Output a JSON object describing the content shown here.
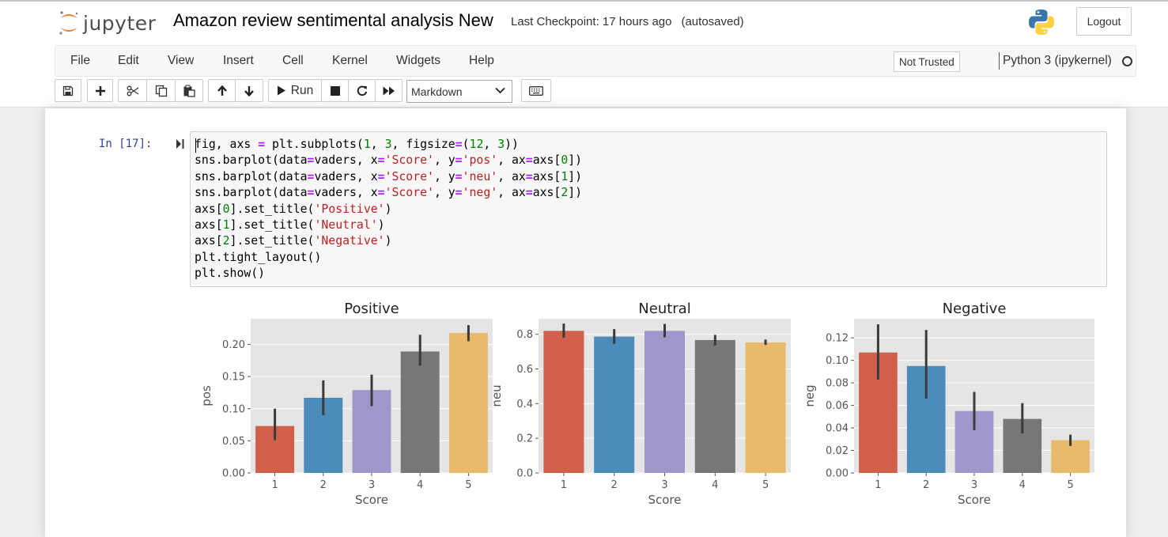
{
  "header": {
    "logo_text": "jupyter",
    "notebook_name": "Amazon review sentimental analysis New",
    "checkpoint": "Last Checkpoint: 17 hours ago",
    "autosave": "(autosaved)",
    "logout_label": "Logout"
  },
  "menu": {
    "items": [
      "File",
      "Edit",
      "View",
      "Insert",
      "Cell",
      "Kernel",
      "Widgets",
      "Help"
    ],
    "trust_label": "Not Trusted",
    "kernel_name": "Python 3 (ipykernel)"
  },
  "toolbar": {
    "run_label": "Run",
    "cell_type": "Markdown",
    "icons": [
      "save-icon",
      "plus-icon",
      "cut-icon",
      "copy-icon",
      "paste-icon",
      "arrow-up-icon",
      "arrow-down-icon",
      "play-icon",
      "stop-icon",
      "restart-icon",
      "fast-forward-icon",
      "keyboard-icon"
    ]
  },
  "cell": {
    "prompt": "In [17]:",
    "code_lines": [
      [
        [
          "fig, axs ",
          ""
        ],
        [
          "=",
          "o"
        ],
        [
          " plt.subplots(",
          ""
        ],
        [
          "1",
          "n"
        ],
        [
          ", ",
          ""
        ],
        [
          "3",
          "n"
        ],
        [
          ", figsize",
          ""
        ],
        [
          "=",
          "o"
        ],
        [
          "(",
          ""
        ],
        [
          "12",
          "n"
        ],
        [
          ", ",
          ""
        ],
        [
          "3",
          "n"
        ],
        [
          "))",
          ""
        ]
      ],
      [
        [
          "sns.barplot(data",
          ""
        ],
        [
          "=",
          "o"
        ],
        [
          "vaders, x",
          ""
        ],
        [
          "=",
          "o"
        ],
        [
          "'Score'",
          "s"
        ],
        [
          ", y",
          ""
        ],
        [
          "=",
          "o"
        ],
        [
          "'pos'",
          "s"
        ],
        [
          ", ax",
          ""
        ],
        [
          "=",
          "o"
        ],
        [
          "axs[",
          ""
        ],
        [
          "0",
          "n"
        ],
        [
          "])",
          ""
        ]
      ],
      [
        [
          "sns.barplot(data",
          ""
        ],
        [
          "=",
          "o"
        ],
        [
          "vaders, x",
          ""
        ],
        [
          "=",
          "o"
        ],
        [
          "'Score'",
          "s"
        ],
        [
          ", y",
          ""
        ],
        [
          "=",
          "o"
        ],
        [
          "'neu'",
          "s"
        ],
        [
          ", ax",
          ""
        ],
        [
          "=",
          "o"
        ],
        [
          "axs[",
          ""
        ],
        [
          "1",
          "n"
        ],
        [
          "])",
          ""
        ]
      ],
      [
        [
          "sns.barplot(data",
          ""
        ],
        [
          "=",
          "o"
        ],
        [
          "vaders, x",
          ""
        ],
        [
          "=",
          "o"
        ],
        [
          "'Score'",
          "s"
        ],
        [
          ", y",
          ""
        ],
        [
          "=",
          "o"
        ],
        [
          "'neg'",
          "s"
        ],
        [
          ", ax",
          ""
        ],
        [
          "=",
          "o"
        ],
        [
          "axs[",
          ""
        ],
        [
          "2",
          "n"
        ],
        [
          "])",
          ""
        ]
      ],
      [
        [
          "axs[",
          ""
        ],
        [
          "0",
          "n"
        ],
        [
          "].set_title(",
          ""
        ],
        [
          "'Positive'",
          "s"
        ],
        [
          ")",
          ""
        ]
      ],
      [
        [
          "axs[",
          ""
        ],
        [
          "1",
          "n"
        ],
        [
          "].set_title(",
          ""
        ],
        [
          "'Neutral'",
          "s"
        ],
        [
          ")",
          ""
        ]
      ],
      [
        [
          "axs[",
          ""
        ],
        [
          "2",
          "n"
        ],
        [
          "].set_title(",
          ""
        ],
        [
          "'Negative'",
          "s"
        ],
        [
          ")",
          ""
        ]
      ],
      [
        [
          "plt.tight_layout()",
          ""
        ]
      ],
      [
        [
          "plt.show()",
          ""
        ]
      ]
    ]
  },
  "colors": {
    "bars": [
      "#d0604b",
      "#4b8cba",
      "#9e98ca",
      "#777777",
      "#e8ba6a"
    ],
    "plot_bg": "#e5e5e5",
    "error_bar": "#3a3a3a"
  },
  "chart_data": [
    {
      "type": "bar",
      "title": "Positive",
      "xlabel": "Score",
      "ylabel": "pos",
      "categories": [
        "1",
        "2",
        "3",
        "4",
        "5"
      ],
      "values": [
        0.073,
        0.117,
        0.129,
        0.189,
        0.218
      ],
      "error_low": [
        0.051,
        0.09,
        0.104,
        0.167,
        0.205
      ],
      "error_high": [
        0.1,
        0.144,
        0.153,
        0.215,
        0.23
      ],
      "ylim": [
        0,
        0.24
      ],
      "yticks": [
        "0.00",
        "0.05",
        "0.10",
        "0.15",
        "0.20"
      ],
      "grid": true
    },
    {
      "type": "bar",
      "title": "Neutral",
      "xlabel": "Score",
      "ylabel": "neu",
      "categories": [
        "1",
        "2",
        "3",
        "4",
        "5"
      ],
      "values": [
        0.82,
        0.787,
        0.82,
        0.767,
        0.753
      ],
      "error_low": [
        0.78,
        0.745,
        0.783,
        0.736,
        0.739
      ],
      "error_high": [
        0.862,
        0.83,
        0.86,
        0.797,
        0.77
      ],
      "ylim": [
        0,
        0.89
      ],
      "yticks": [
        "0.0",
        "0.2",
        "0.4",
        "0.6",
        "0.8"
      ],
      "grid": true
    },
    {
      "type": "bar",
      "title": "Negative",
      "xlabel": "Score",
      "ylabel": "neg",
      "categories": [
        "1",
        "2",
        "3",
        "4",
        "5"
      ],
      "values": [
        0.107,
        0.095,
        0.055,
        0.048,
        0.029
      ],
      "error_low": [
        0.083,
        0.066,
        0.038,
        0.035,
        0.024
      ],
      "error_high": [
        0.132,
        0.127,
        0.072,
        0.062,
        0.034
      ],
      "ylim": [
        0,
        0.137
      ],
      "yticks": [
        "0.00",
        "0.02",
        "0.04",
        "0.06",
        "0.08",
        "0.10",
        "0.12"
      ],
      "grid": true
    }
  ]
}
